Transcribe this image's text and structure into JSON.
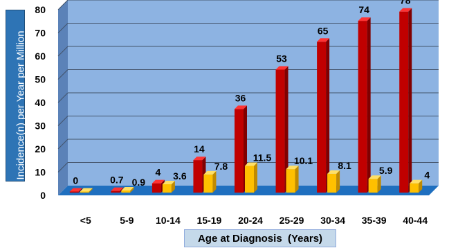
{
  "chart_data": {
    "type": "bar",
    "xlabel": "Age at Diagnosis  (Years)",
    "ylabel": "Incidence(n) per Year per Million",
    "categories": [
      "<5",
      "5-9",
      "10-14",
      "15-19",
      "20-24",
      "25-29",
      "30-34",
      "35-39",
      "40-44"
    ],
    "series": [
      {
        "values": [
          0,
          0.7,
          4,
          14,
          36,
          53,
          65,
          74,
          78
        ],
        "labels": [
          "0",
          "0.7",
          "4",
          "14",
          "36",
          "53",
          "65",
          "74",
          "78"
        ],
        "color": "#c00000"
      },
      {
        "values": [
          0,
          0.9,
          3.6,
          7.8,
          11.5,
          10.1,
          8.1,
          5.9,
          4
        ],
        "labels": [
          "",
          "0.9",
          "3.6",
          "7.8",
          "11.5",
          "10.1",
          "8.1",
          "5.9",
          "4"
        ],
        "color": "#ffc000"
      }
    ],
    "ylim": [
      0,
      80
    ],
    "yticks": [
      "0",
      "10",
      "20",
      "30",
      "40",
      "50",
      "60",
      "70",
      "80"
    ],
    "grid": true,
    "background": "#8db3e2",
    "floor": "#1f6fbf"
  }
}
